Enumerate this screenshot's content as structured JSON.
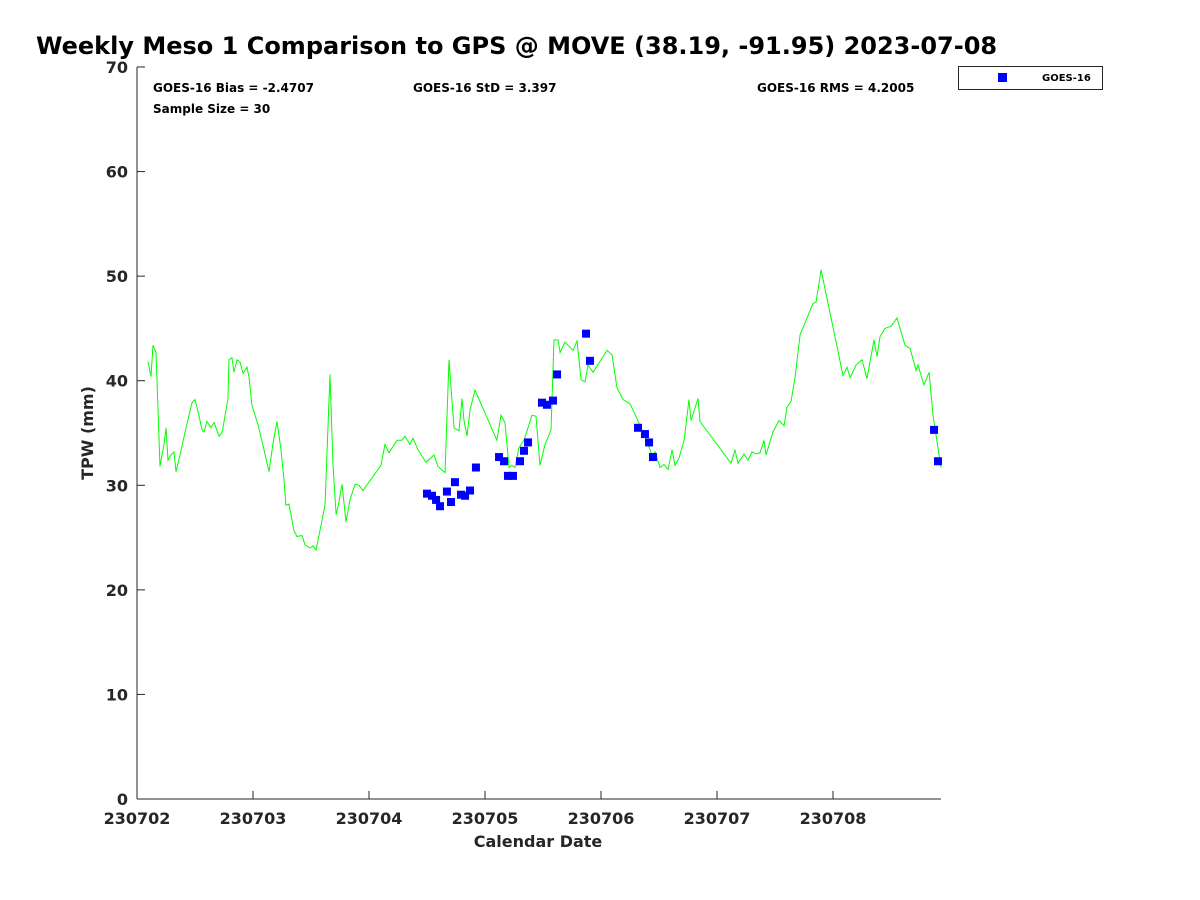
{
  "chart_data": {
    "type": "line",
    "title": "Weekly Meso 1 Comparison to GPS @ MOVE (38.19, -91.95) 2023-07-08",
    "xlabel": "Calendar Date",
    "ylabel": "TPW (mm)",
    "x_units": "days since 230702",
    "xlim": [
      0,
      6.931
    ],
    "ylim": [
      0,
      70
    ],
    "xticks": [
      0,
      1,
      2,
      3,
      4,
      5,
      6
    ],
    "xtick_labels": [
      "230702",
      "230703",
      "230704",
      "230705",
      "230706",
      "230707",
      "230708"
    ],
    "yticks": [
      0,
      10,
      20,
      30,
      40,
      50,
      60,
      70
    ],
    "ytick_labels": [
      "0",
      "10",
      "20",
      "30",
      "40",
      "50",
      "60",
      "70"
    ],
    "grid": false,
    "legend": {
      "placement": "top-right outside",
      "entries": [
        "GOES-16"
      ]
    },
    "annotations": {
      "bias": "GOES-16 Bias = -2.4707",
      "sample": "Sample Size = 30",
      "std": "GOES-16 StD = 3.397",
      "rms": "GOES-16 RMS = 4.2005"
    },
    "colors": {
      "gps": "#00ff00",
      "goes": "#0000ff"
    },
    "series": [
      {
        "name": "GPS",
        "type": "line",
        "x": [
          0.095,
          0.121,
          0.138,
          0.164,
          0.198,
          0.233,
          0.25,
          0.267,
          0.293,
          0.319,
          0.336,
          0.371,
          0.422,
          0.474,
          0.5,
          0.534,
          0.56,
          0.578,
          0.603,
          0.638,
          0.664,
          0.681,
          0.707,
          0.733,
          0.784,
          0.793,
          0.819,
          0.836,
          0.862,
          0.888,
          0.914,
          0.948,
          0.966,
          0.991,
          1.043,
          1.095,
          1.138,
          1.172,
          1.207,
          1.241,
          1.267,
          1.284,
          1.31,
          1.353,
          1.379,
          1.422,
          1.448,
          1.491,
          1.517,
          1.543,
          1.578,
          1.621,
          1.664,
          1.69,
          1.716,
          1.741,
          1.767,
          1.802,
          1.836,
          1.879,
          1.914,
          1.948,
          2.103,
          2.138,
          2.172,
          2.207,
          2.241,
          2.284,
          2.31,
          2.353,
          2.379,
          2.422,
          2.457,
          2.491,
          2.56,
          2.595,
          2.655,
          2.69,
          2.733,
          2.776,
          2.802,
          2.819,
          2.845,
          2.871,
          2.914,
          3.103,
          3.138,
          3.172,
          3.207,
          3.233,
          3.259,
          3.293,
          3.336,
          3.405,
          3.44,
          3.474,
          3.517,
          3.569,
          3.595,
          3.629,
          3.647,
          3.69,
          3.759,
          3.793,
          3.828,
          3.862,
          3.888,
          3.931,
          4.052,
          4.095,
          4.138,
          4.19,
          4.25,
          4.302,
          4.336,
          4.379,
          4.422,
          4.44,
          4.466,
          4.509,
          4.543,
          4.578,
          4.612,
          4.638,
          4.672,
          4.716,
          4.759,
          4.776,
          4.836,
          4.853,
          5.121,
          5.155,
          5.181,
          5.233,
          5.267,
          5.302,
          5.336,
          5.371,
          5.405,
          5.422,
          5.483,
          5.534,
          5.578,
          5.603,
          5.638,
          5.672,
          5.716,
          5.828,
          5.853,
          5.897,
          6.086,
          6.121,
          6.147,
          6.198,
          6.25,
          6.293,
          6.353,
          6.379,
          6.405,
          6.448,
          6.5,
          6.552,
          6.621,
          6.664,
          6.716,
          6.733,
          6.784,
          6.828,
          6.862,
          6.931
        ],
        "y": [
          41.8,
          40.4,
          43.4,
          42.7,
          31.8,
          33.9,
          35.5,
          32.4,
          32.9,
          33.2,
          31.3,
          32.9,
          35.5,
          37.9,
          38.2,
          36.7,
          35.3,
          35.1,
          36.1,
          35.5,
          36.0,
          35.5,
          34.7,
          35.0,
          38.2,
          42.0,
          42.2,
          40.8,
          42.0,
          41.8,
          40.7,
          41.3,
          40.3,
          37.6,
          35.8,
          33.4,
          31.3,
          34.0,
          36.1,
          33.4,
          30.5,
          28.1,
          28.2,
          25.7,
          25.1,
          25.2,
          24.3,
          24.0,
          24.2,
          23.8,
          25.7,
          28.1,
          40.6,
          31.9,
          27.2,
          28.4,
          30.1,
          26.5,
          28.6,
          30.1,
          30.0,
          29.5,
          31.9,
          33.9,
          33.1,
          33.7,
          34.3,
          34.3,
          34.7,
          33.9,
          34.5,
          33.4,
          32.8,
          32.2,
          32.9,
          31.8,
          31.2,
          42.0,
          35.5,
          35.2,
          38.3,
          36.2,
          34.7,
          37.2,
          39.1,
          34.3,
          36.7,
          36.0,
          31.7,
          31.9,
          31.7,
          33.6,
          34.3,
          36.7,
          36.6,
          31.9,
          33.9,
          35.3,
          43.9,
          43.9,
          42.7,
          43.7,
          42.9,
          43.8,
          40.1,
          39.9,
          41.5,
          40.8,
          42.9,
          42.5,
          39.3,
          38.2,
          37.8,
          36.6,
          35.7,
          34.6,
          33.4,
          32.9,
          33.2,
          31.7,
          32.0,
          31.5,
          33.4,
          31.9,
          32.6,
          34.3,
          38.2,
          36.2,
          38.3,
          36.1,
          32.1,
          33.4,
          32.1,
          33.0,
          32.4,
          33.2,
          33.0,
          33.1,
          34.3,
          32.9,
          35.1,
          36.2,
          35.7,
          37.5,
          38.0,
          40.3,
          44.4,
          47.4,
          47.5,
          50.6,
          40.5,
          41.3,
          40.3,
          41.5,
          42.0,
          40.2,
          43.9,
          42.3,
          44.2,
          45.0,
          45.2,
          46.0,
          43.4,
          43.1,
          41.0,
          41.5,
          39.6,
          40.8,
          36.7,
          31.7
        ]
      },
      {
        "name": "GOES-16",
        "type": "scatter",
        "x": [
          2.5,
          2.543,
          2.578,
          2.612,
          2.672,
          2.707,
          2.741,
          2.793,
          2.828,
          2.871,
          2.922,
          3.121,
          3.164,
          3.198,
          3.241,
          3.302,
          3.336,
          3.371,
          3.491,
          3.534,
          3.586,
          3.621,
          3.871,
          3.905,
          4.319,
          4.379,
          4.414,
          4.448,
          6.871,
          6.905
        ],
        "y": [
          29.2,
          29.0,
          28.6,
          28.0,
          29.4,
          28.4,
          30.3,
          29.1,
          29.0,
          29.5,
          31.7,
          32.7,
          32.3,
          30.9,
          30.9,
          32.3,
          33.3,
          34.1,
          37.9,
          37.7,
          38.1,
          40.6,
          44.5,
          41.9,
          35.5,
          34.9,
          34.1,
          32.7,
          35.3,
          32.3
        ]
      }
    ]
  }
}
